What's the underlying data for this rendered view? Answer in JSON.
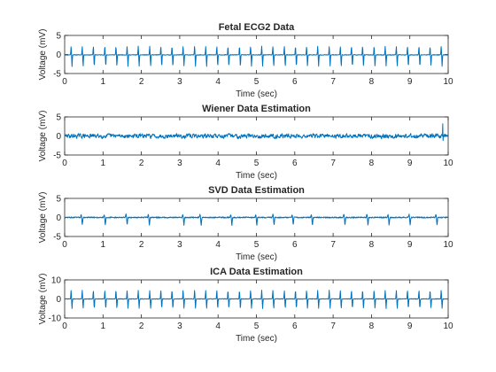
{
  "colors": {
    "line": "#0072bd",
    "axes": "#262626",
    "background": "#ffffff"
  },
  "chart_data": [
    {
      "type": "line",
      "title": "Fetal ECG2 Data",
      "xlabel": "Time (sec)",
      "ylabel": "Voltage (mV)",
      "xlim": [
        0,
        10
      ],
      "ylim": [
        -5,
        5
      ],
      "xticks": [
        "0",
        "1",
        "2",
        "3",
        "4",
        "5",
        "6",
        "7",
        "8",
        "9",
        "10"
      ],
      "yticks": [
        "-5",
        "0",
        "5"
      ],
      "grid": false,
      "legend": null,
      "signal": {
        "description_of_shape": "regular QRS spikes",
        "beat_times_sec": [
          0.18,
          0.47,
          0.76,
          1.06,
          1.35,
          1.64,
          1.93,
          2.23,
          2.52,
          2.81,
          3.1,
          3.4,
          3.69,
          3.98,
          4.27,
          4.57,
          4.86,
          5.15,
          5.44,
          5.74,
          6.03,
          6.32,
          6.61,
          6.91,
          7.2,
          7.49,
          7.78,
          8.08,
          8.37,
          8.66,
          8.95,
          9.25,
          9.54,
          9.83
        ],
        "peak_mV": 2.2,
        "trough_mV": -3.0,
        "baseline_mV": -0.1,
        "noise_mV": 0.08
      }
    },
    {
      "type": "line",
      "title": "Wiener Data Estimation",
      "xlabel": "Time (sec)",
      "ylabel": "Voltage (mV)",
      "xlim": [
        0,
        10
      ],
      "ylim": [
        -5,
        5
      ],
      "xticks": [
        "0",
        "1",
        "2",
        "3",
        "4",
        "5",
        "6",
        "7",
        "8",
        "9",
        "10"
      ],
      "yticks": [
        "-5",
        "0",
        "5"
      ],
      "grid": false,
      "legend": null,
      "signal": {
        "description_of_shape": "dense noise around zero",
        "noise_mV": 0.7,
        "max_mV": 3.2,
        "min_mV": -2.2
      }
    },
    {
      "type": "line",
      "title": "SVD Data Estimation",
      "xlabel": "Time (sec)",
      "ylabel": "Voltage (mV)",
      "xlim": [
        0,
        10
      ],
      "ylim": [
        -5,
        5
      ],
      "xticks": [
        "0",
        "1",
        "2",
        "3",
        "4",
        "5",
        "6",
        "7",
        "8",
        "9",
        "10"
      ],
      "yticks": [
        "-5",
        "0",
        "5"
      ],
      "grid": false,
      "legend": null,
      "signal": {
        "description_of_shape": "small irregular dips",
        "dip_times_sec": [
          0.45,
          1.05,
          1.62,
          2.2,
          3.1,
          3.55,
          4.35,
          5.0,
          5.45,
          5.95,
          6.45,
          7.3,
          7.9,
          8.45,
          9.0,
          9.7
        ],
        "dip_mV": -2.0,
        "bump_mV": 0.8,
        "noise_mV": 0.15
      }
    },
    {
      "type": "line",
      "title": "ICA Data Estimation",
      "xlabel": "Time (sec)",
      "ylabel": "Voltage (mV)",
      "xlim": [
        0,
        10
      ],
      "ylim": [
        -10,
        10
      ],
      "xticks": [
        "0",
        "1",
        "2",
        "3",
        "4",
        "5",
        "6",
        "7",
        "8",
        "9",
        "10"
      ],
      "yticks": [
        "-10",
        "0",
        "10"
      ],
      "grid": false,
      "legend": null,
      "signal": {
        "description_of_shape": "regular QRS spikes",
        "beat_times_sec": [
          0.18,
          0.47,
          0.76,
          1.06,
          1.35,
          1.64,
          1.93,
          2.23,
          2.52,
          2.81,
          3.1,
          3.4,
          3.69,
          3.98,
          4.27,
          4.57,
          4.86,
          5.15,
          5.44,
          5.74,
          6.03,
          6.32,
          6.61,
          6.91,
          7.2,
          7.49,
          7.78,
          8.08,
          8.37,
          8.66,
          8.95,
          9.25,
          9.54,
          9.83
        ],
        "peak_mV": 4.5,
        "trough_mV": -5.0,
        "baseline_mV": 0.0,
        "noise_mV": 0.15
      }
    }
  ]
}
